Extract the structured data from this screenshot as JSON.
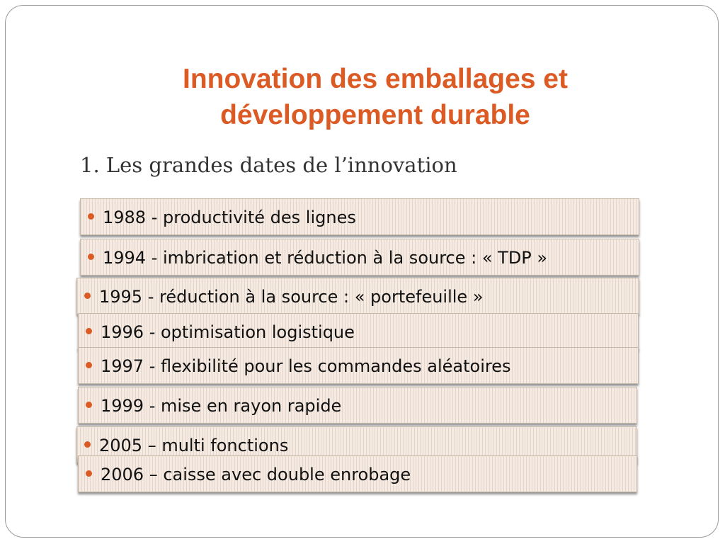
{
  "title": {
    "line1": "Innovation des emballages et",
    "line2": "développement durable"
  },
  "subtitle": "1. Les grandes dates de l’innovation",
  "items": [
    {
      "label": "1988 - productivité des lignes"
    },
    {
      "label": "1994 - imbrication et réduction à la source : « TDP »"
    },
    {
      "label": "1995 - réduction à la source : « portefeuille »"
    },
    {
      "label": "1996 - optimisation logistique"
    },
    {
      "label": "1997 - flexibilité pour les commandes aléatoires"
    },
    {
      "label": "1999 - mise en rayon rapide"
    },
    {
      "label": "2005 – multi fonctions"
    },
    {
      "label": "2006 – caisse avec double enrobage"
    }
  ],
  "colors": {
    "title": "#dc5a23",
    "bullet": "#dc5a23",
    "bar_background": "#f6ebe3"
  }
}
